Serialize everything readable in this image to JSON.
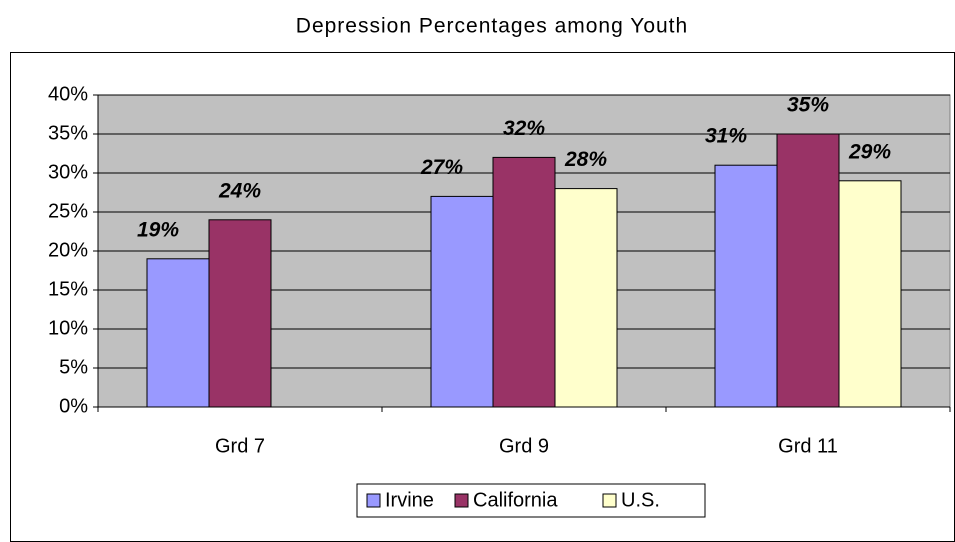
{
  "chart_data": {
    "type": "bar",
    "title": "Depression Percentages among Youth",
    "categories": [
      "Grd 7",
      "Grd 9",
      "Grd 11"
    ],
    "series": [
      {
        "name": "Irvine",
        "color": "#9999ff",
        "values": [
          19,
          27,
          31
        ],
        "value_labels": [
          "19%",
          "27%",
          "31%"
        ]
      },
      {
        "name": "California",
        "color": "#993366",
        "values": [
          24,
          32,
          35
        ],
        "value_labels": [
          "24%",
          "32%",
          "35%"
        ]
      },
      {
        "name": "U.S.",
        "color": "#ffffcc",
        "values": [
          null,
          28,
          29
        ],
        "value_labels": [
          null,
          "28%",
          "29%"
        ]
      }
    ],
    "ylim": [
      0,
      40
    ],
    "yticks": [
      {
        "value": 0,
        "label": "0%"
      },
      {
        "value": 5,
        "label": "5%"
      },
      {
        "value": 10,
        "label": "10%"
      },
      {
        "value": 15,
        "label": "15%"
      },
      {
        "value": 20,
        "label": "20%"
      },
      {
        "value": 25,
        "label": "25%"
      },
      {
        "value": 30,
        "label": "30%"
      },
      {
        "value": 35,
        "label": "35%"
      },
      {
        "value": 40,
        "label": "40%"
      }
    ],
    "grid": true,
    "legend": "bottom",
    "background": "#c0c0c0"
  }
}
